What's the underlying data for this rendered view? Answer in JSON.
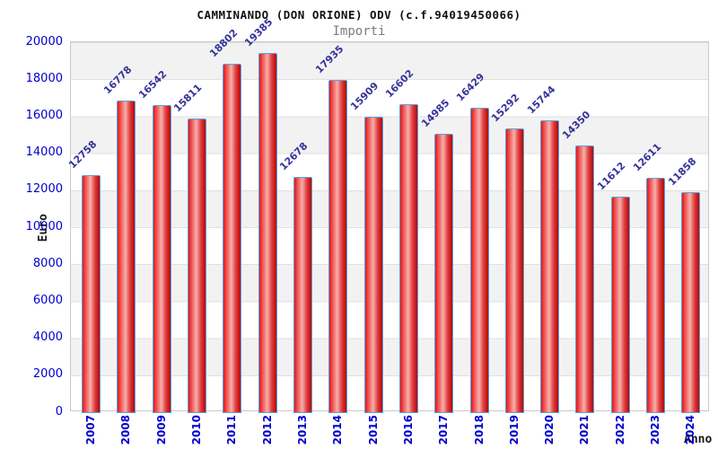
{
  "page": {
    "title": "CAMMINANDO (DON ORIONE) ODV (c.f.94019450066)",
    "subtitle": "Importi"
  },
  "colors": {
    "bar_fill": "#e02020",
    "bar_border": "#5ba0e0",
    "tick_label": "#0000cd",
    "value_label": "#333399",
    "band_gray": "#f2f2f2",
    "plot_border": "#c9c9c9",
    "subtitle_gray": "#7d7d7d"
  },
  "chart_data": {
    "type": "bar",
    "title": "CAMMINANDO (DON ORIONE) ODV (c.f.94019450066)",
    "subtitle": "Importi",
    "xlabel": "Anno",
    "ylabel": "Euro",
    "categories": [
      "2007",
      "2008",
      "2009",
      "2010",
      "2011",
      "2012",
      "2013",
      "2014",
      "2015",
      "2016",
      "2017",
      "2018",
      "2019",
      "2020",
      "2021",
      "2022",
      "2023",
      "2024"
    ],
    "values": [
      12758,
      16778,
      16542,
      15811,
      18802,
      19385,
      12678,
      17935,
      15909,
      16602,
      14985,
      16429,
      15292,
      15744,
      14350,
      11612,
      12611,
      11858
    ],
    "ylim": [
      0,
      20000
    ],
    "yticks": [
      0,
      2000,
      4000,
      6000,
      8000,
      10000,
      12000,
      14000,
      16000,
      18000,
      20000
    ],
    "grid": "alternating-horizontal-bands",
    "legend": "none",
    "value_labels": "above-bars-rotated-45",
    "x_tick_rotation": -90
  }
}
